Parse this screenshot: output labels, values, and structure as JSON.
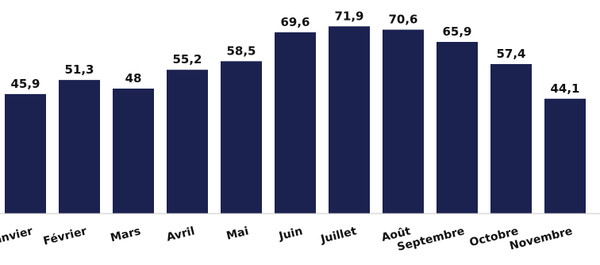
{
  "chart_data": {
    "type": "bar",
    "categories": [
      "Janvier",
      "Février",
      "Mars",
      "Avril",
      "Mai",
      "Juin",
      "Juillet",
      "Août",
      "Septembre",
      "Octobre",
      "Novembre"
    ],
    "values": [
      45.9,
      51.3,
      48,
      55.2,
      58.5,
      69.6,
      71.9,
      70.6,
      65.9,
      57.4,
      44.1
    ],
    "value_labels": [
      "45,9",
      "51,3",
      "48",
      "55,2",
      "58,5",
      "69,6",
      "71,9",
      "70,6",
      "65,9",
      "57,4",
      "44,1"
    ],
    "title": "",
    "xlabel": "",
    "ylabel": "",
    "ylim": [
      0,
      82
    ],
    "grid": false,
    "colors": {
      "bar": "#1b2250",
      "text": "#111111",
      "axis": "#c8c8c8"
    }
  }
}
